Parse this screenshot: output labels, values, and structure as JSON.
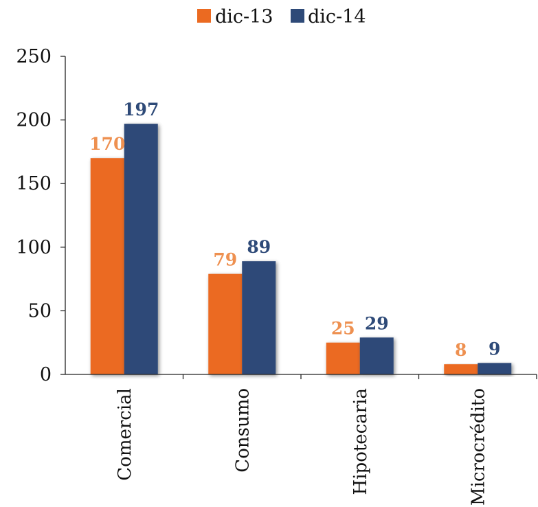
{
  "chart_data": {
    "type": "bar",
    "title": "",
    "xlabel": "",
    "ylabel": "",
    "categories": [
      "Comercial",
      "Consumo",
      "Hipotecaria",
      "Microcrédito"
    ],
    "series": [
      {
        "name": "dic-13",
        "values": [
          170,
          79,
          25,
          8
        ],
        "color": "#EB6A21",
        "label_color": "#EE9050"
      },
      {
        "name": "dic-14",
        "values": [
          197,
          89,
          29,
          9
        ],
        "color": "#2E4A78",
        "label_color": "#2E4A78"
      }
    ],
    "ylim": [
      0,
      250
    ],
    "yticks": [
      0,
      50,
      100,
      150,
      200,
      250
    ],
    "grid": false,
    "legend": "top-center"
  }
}
